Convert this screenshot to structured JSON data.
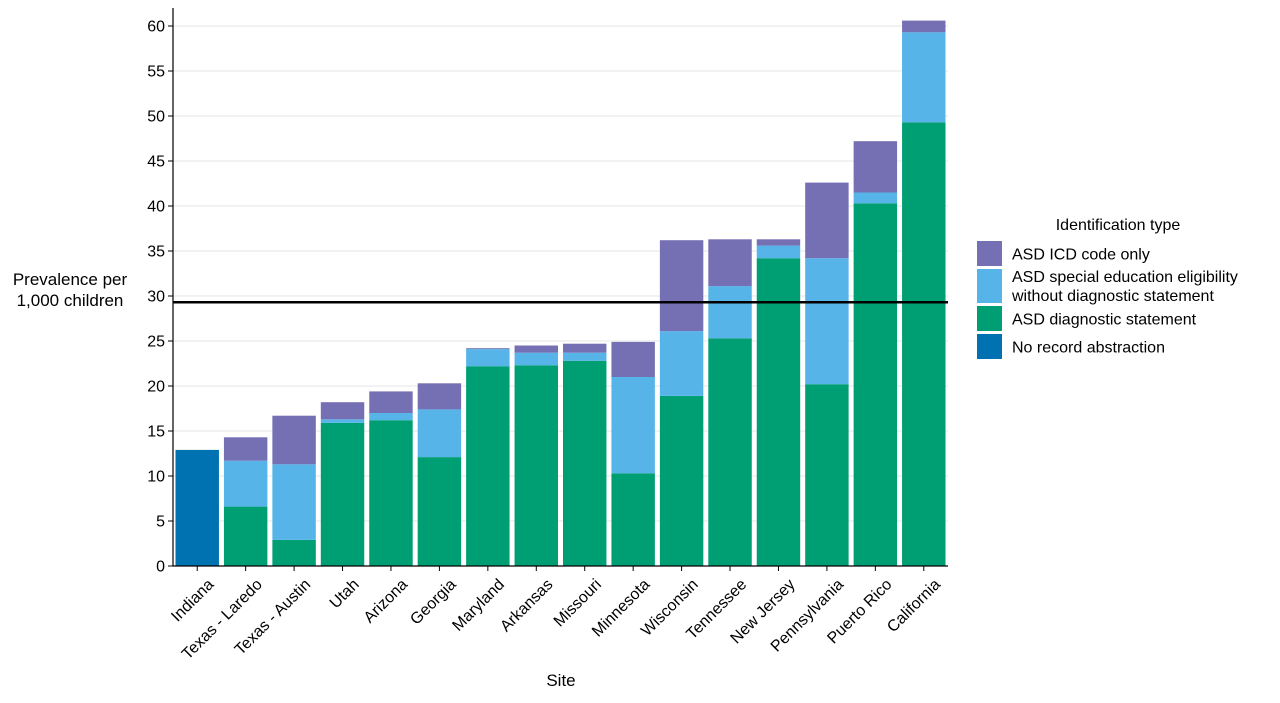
{
  "chart_data": {
    "type": "bar",
    "stacked": true,
    "title": "",
    "xlabel": "Site",
    "ylabel": [
      "Prevalence per",
      "1,000 children"
    ],
    "ylim": [
      0,
      62
    ],
    "yticks": [
      0,
      5,
      10,
      15,
      20,
      25,
      30,
      35,
      40,
      45,
      50,
      55,
      60
    ],
    "grid": "horizontal",
    "reference_line": 29.3,
    "categories": [
      "Indiana",
      "Texas - Laredo",
      "Texas - Austin",
      "Utah",
      "Arizona",
      "Georgia",
      "Maryland",
      "Arkansas",
      "Missouri",
      "Minnesota",
      "Wisconsin",
      "Tennessee",
      "New Jersey",
      "Pennsylvania",
      "Puerto Rico",
      "California"
    ],
    "series": [
      {
        "name": "No record abstraction",
        "color": "#0072b2",
        "values": [
          12.9,
          0,
          0,
          0,
          0,
          0,
          0,
          0,
          0,
          0,
          0,
          0,
          0,
          0,
          0,
          0
        ]
      },
      {
        "name": "ASD diagnostic statement",
        "color": "#009e73",
        "values": [
          0,
          6.6,
          2.9,
          15.9,
          16.2,
          12.1,
          22.2,
          22.3,
          22.8,
          10.3,
          18.9,
          25.3,
          34.2,
          20.2,
          40.3,
          49.3
        ]
      },
      {
        "name": "ASD special education eligibility without diagnostic statement",
        "color": "#56b4e9",
        "values": [
          0,
          5.1,
          8.4,
          0.4,
          0.8,
          5.3,
          1.9,
          1.4,
          0.9,
          10.7,
          7.2,
          5.8,
          1.4,
          14.0,
          1.2,
          10.0
        ]
      },
      {
        "name": "ASD ICD code only",
        "color": "#7570b3",
        "values": [
          0,
          2.6,
          5.4,
          1.9,
          2.4,
          2.9,
          0.1,
          0.8,
          1.0,
          3.9,
          10.1,
          5.2,
          0.7,
          8.4,
          5.7,
          1.3
        ]
      }
    ],
    "legend": {
      "title": "Identification type",
      "position": "right",
      "items": [
        {
          "label_lines": [
            "ASD ICD code only"
          ],
          "color": "#7570b3"
        },
        {
          "label_lines": [
            "ASD special education eligibility",
            "without diagnostic statement"
          ],
          "color": "#56b4e9"
        },
        {
          "label_lines": [
            "ASD diagnostic statement"
          ],
          "color": "#009e73"
        },
        {
          "label_lines": [
            "No record abstraction"
          ],
          "color": "#0072b2"
        }
      ]
    }
  }
}
